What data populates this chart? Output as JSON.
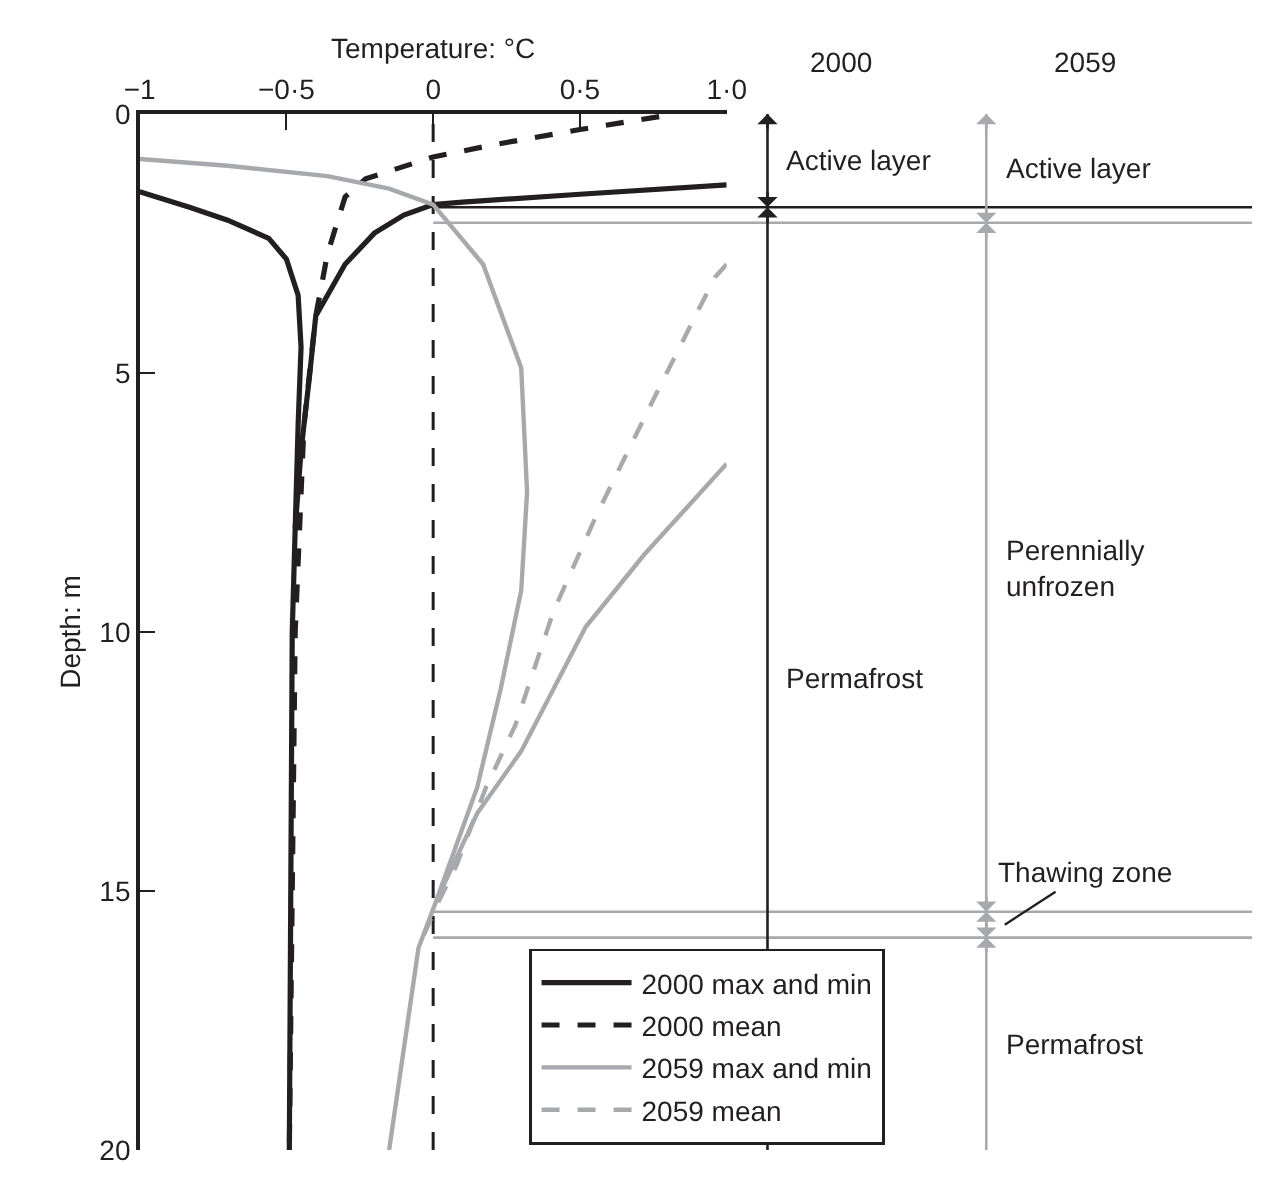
{
  "chart_data": {
    "type": "line",
    "xlabel": "Temperature: °C",
    "ylabel": "Depth: m",
    "xlim": [
      -1,
      1.0
    ],
    "xticks": [
      {
        "value": -1,
        "label": "−1"
      },
      {
        "value": -0.5,
        "label": "−0·5"
      },
      0,
      {
        "value": 0.5,
        "label": "0·5"
      },
      {
        "value": 1.0,
        "label": "1·0"
      }
    ],
    "ylim": [
      20,
      0
    ],
    "yticks": [
      0,
      5,
      10,
      15,
      20
    ],
    "grid": false,
    "marker": "none",
    "legend": "bottom right",
    "series": [
      {
        "name": "2000 max and min",
        "color": "#231f20",
        "line_style": "solid",
        "x": [
          -1,
          -0.83,
          -0.7,
          -0.56,
          -0.5,
          -0.46,
          -0.45,
          -0.46,
          -0.48,
          -0.49,
          null,
          1.0,
          0.5,
          0.1,
          0,
          -0.1,
          -0.2,
          -0.3,
          -0.4,
          -0.42,
          -0.45,
          -0.47
        ],
        "values": [
          1.5,
          1.8,
          2.05,
          2.4,
          2.8,
          3.5,
          4.5,
          6,
          10,
          20,
          null,
          1.37,
          1.55,
          1.7,
          1.75,
          1.95,
          2.3,
          2.9,
          3.9,
          5,
          6.5,
          8
        ]
      },
      {
        "name": "2000 mean",
        "color": "#231f20",
        "line_style": "dashed",
        "x": [
          0.77,
          0.5,
          0.2,
          0,
          -0.23,
          -0.3,
          -0.36,
          -0.4,
          -0.44,
          -0.47,
          -0.49
        ],
        "values": [
          0.05,
          0.3,
          0.6,
          0.83,
          1.25,
          1.6,
          2.7,
          3.9,
          6,
          10,
          20
        ]
      },
      {
        "name": "2059 max and min",
        "color": "#a7a9ac",
        "line_style": "solid",
        "x": [
          -1,
          -0.7,
          -0.36,
          -0.15,
          0,
          0.17,
          0.3,
          0.32,
          0.3,
          0.23,
          0.15,
          0.01,
          -0.05,
          -0.15,
          null,
          1.0,
          0.72,
          0.52,
          0.3,
          0.15,
          0.01
        ],
        "values": [
          0.87,
          1.0,
          1.2,
          1.44,
          1.75,
          2.9,
          4.9,
          7.3,
          9.2,
          11.1,
          13.0,
          15.2,
          16.1,
          20,
          null,
          6.75,
          8.5,
          9.9,
          12.3,
          13.5,
          15.2
        ]
      },
      {
        "name": "2059 mean",
        "color": "#a7a9ac",
        "line_style": "dashed",
        "x": [
          1.0,
          0.96,
          0.76,
          0.56,
          0.41,
          0.28,
          0.18,
          0.08,
          0.01,
          -0.05
        ],
        "values": [
          2.9,
          3.15,
          5.4,
          7.7,
          9.6,
          11.8,
          13.0,
          14.5,
          15.3,
          16.1
        ]
      }
    ],
    "ref_lines": [
      {
        "axis": "x",
        "value": 0,
        "color": "#231f20",
        "line_style": "dashed"
      },
      {
        "axis": "y",
        "value": 1.8,
        "color": "#231f20",
        "line_style": "solid"
      },
      {
        "axis": "y",
        "value": 2.1,
        "color": "#a7a9ac",
        "line_style": "solid"
      },
      {
        "axis": "y",
        "value": 15.4,
        "color": "#a7a9ac",
        "line_style": "solid"
      },
      {
        "axis": "y",
        "value": 15.9,
        "color": "#a7a9ac",
        "line_style": "solid"
      }
    ],
    "annotations": [
      "2000",
      "2059",
      "Active layer",
      "Permafrost",
      "Active layer",
      "Perennially unfrozen",
      "Thawing zone",
      "Permafrost"
    ]
  }
}
